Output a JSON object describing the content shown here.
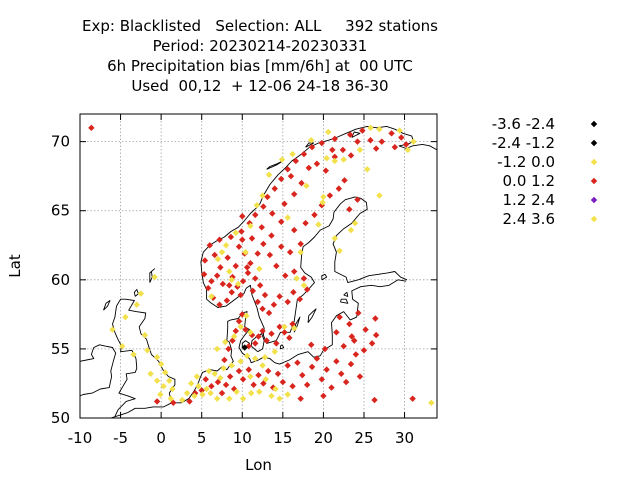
{
  "chart_data": {
    "type": "scatter",
    "title": [
      "Exp: Blacklisted   Selection: ALL     392 stations",
      "Period: 20230214-20230331",
      "6h Precipitation bias [mm/6h] at  00 UTC",
      "Used  00,12  + 12-06 24-18 36-30"
    ],
    "xlabel": "Lon",
    "ylabel": "Lat",
    "xlim": [
      -10,
      34
    ],
    "ylim": [
      50,
      72
    ],
    "xticks": [
      -10,
      -5,
      0,
      5,
      10,
      15,
      20,
      25,
      30
    ],
    "yticks": [
      50,
      55,
      60,
      65,
      70
    ],
    "grid": true,
    "legend_placement": "right",
    "classes": [
      {
        "label": "-3.6 -2.4",
        "color": "#000000"
      },
      {
        "label": "-2.4 -1.2",
        "color": "#000000"
      },
      {
        "label": "-1.2 0.0",
        "color": "#f2e14a"
      },
      {
        "label": "0.0 1.2",
        "color": "#d9251d"
      },
      {
        "label": "1.2 2.4",
        "color": "#7a1fc4"
      },
      {
        "label": "2.4 3.6",
        "color": "#f2e14a"
      }
    ],
    "series": [
      {
        "class": "0.0 1.2",
        "color": "#d9251d",
        "points": [
          [
            -8.6,
            71.0
          ],
          [
            -0.5,
            51.2
          ],
          [
            1.5,
            51.1
          ],
          [
            3.5,
            51.2
          ],
          [
            4.2,
            51.8
          ],
          [
            5.0,
            52.0
          ],
          [
            5.5,
            52.8
          ],
          [
            6.2,
            52.3
          ],
          [
            7.0,
            52.6
          ],
          [
            7.5,
            51.8
          ],
          [
            8.0,
            52.4
          ],
          [
            8.5,
            53.0
          ],
          [
            9.0,
            52.1
          ],
          [
            9.6,
            53.4
          ],
          [
            10.1,
            52.8
          ],
          [
            10.8,
            53.5
          ],
          [
            11.4,
            52.4
          ],
          [
            12.0,
            53.1
          ],
          [
            12.6,
            52.5
          ],
          [
            13.2,
            53.4
          ],
          [
            13.8,
            52.2
          ],
          [
            14.4,
            53.2
          ],
          [
            15.0,
            52.6
          ],
          [
            15.6,
            53.8
          ],
          [
            16.2,
            52.3
          ],
          [
            16.8,
            54.0
          ],
          [
            17.4,
            53.1
          ],
          [
            18.0,
            52.4
          ],
          [
            18.6,
            53.7
          ],
          [
            19.2,
            54.3
          ],
          [
            19.8,
            52.8
          ],
          [
            20.4,
            53.5
          ],
          [
            21.0,
            52.2
          ],
          [
            21.6,
            54.1
          ],
          [
            22.2,
            53.2
          ],
          [
            22.8,
            52.6
          ],
          [
            23.4,
            53.9
          ],
          [
            24.0,
            54.6
          ],
          [
            22.5,
            55.2
          ],
          [
            23.8,
            55.6
          ],
          [
            25.0,
            54.9
          ],
          [
            26.0,
            55.4
          ],
          [
            24.5,
            53.0
          ],
          [
            20.0,
            51.6
          ],
          [
            17.2,
            51.4
          ],
          [
            26.3,
            51.3
          ],
          [
            31.0,
            51.4
          ],
          [
            18.5,
            55.3
          ],
          [
            20.2,
            55.0
          ],
          [
            21.6,
            56.2
          ],
          [
            23.2,
            56.8
          ],
          [
            25.2,
            56.4
          ],
          [
            22.0,
            57.3
          ],
          [
            24.3,
            57.6
          ],
          [
            26.4,
            57.2
          ],
          [
            23.5,
            55.9
          ],
          [
            26.5,
            56.0
          ],
          [
            7.8,
            54.2
          ],
          [
            8.3,
            55.0
          ],
          [
            8.8,
            55.6
          ],
          [
            9.2,
            56.3
          ],
          [
            9.6,
            57.0
          ],
          [
            10.0,
            57.5
          ],
          [
            10.4,
            56.4
          ],
          [
            10.8,
            55.2
          ],
          [
            11.2,
            56.0
          ],
          [
            11.6,
            55.4
          ],
          [
            12.0,
            55.9
          ],
          [
            12.5,
            56.3
          ],
          [
            13.0,
            55.6
          ],
          [
            13.6,
            56.1
          ],
          [
            14.2,
            55.4
          ],
          [
            14.6,
            56.6
          ],
          [
            15.2,
            56.2
          ],
          [
            15.8,
            55.8
          ],
          [
            16.2,
            56.8
          ],
          [
            13.3,
            57.6
          ],
          [
            12.5,
            57.9
          ],
          [
            11.9,
            58.4
          ],
          [
            12.8,
            58.9
          ],
          [
            13.9,
            58.2
          ],
          [
            14.6,
            58.8
          ],
          [
            15.6,
            58.4
          ],
          [
            16.3,
            59.1
          ],
          [
            17.1,
            58.6
          ],
          [
            18.0,
            59.3
          ],
          [
            17.6,
            60.1
          ],
          [
            16.4,
            60.6
          ],
          [
            15.3,
            60.3
          ],
          [
            14.2,
            61.0
          ],
          [
            13.4,
            61.8
          ],
          [
            14.8,
            62.4
          ],
          [
            15.9,
            62.0
          ],
          [
            17.2,
            62.6
          ],
          [
            16.4,
            63.6
          ],
          [
            17.8,
            64.1
          ],
          [
            18.9,
            64.7
          ],
          [
            19.8,
            65.4
          ],
          [
            20.8,
            66.1
          ],
          [
            21.9,
            66.6
          ],
          [
            22.6,
            67.2
          ],
          [
            20.3,
            67.9
          ],
          [
            19.2,
            68.4
          ],
          [
            21.4,
            68.9
          ],
          [
            24.2,
            65.8
          ],
          [
            23.2,
            65.1
          ],
          [
            14.8,
            64.2
          ],
          [
            13.6,
            63.2
          ],
          [
            12.6,
            62.6
          ],
          [
            11.9,
            61.9
          ],
          [
            5.3,
            60.4
          ],
          [
            5.8,
            59.4
          ],
          [
            6.4,
            58.7
          ],
          [
            7.2,
            58.2
          ],
          [
            8.1,
            58.5
          ],
          [
            8.7,
            59.1
          ],
          [
            9.4,
            59.5
          ],
          [
            10.1,
            59.9
          ],
          [
            10.7,
            60.5
          ],
          [
            11.3,
            59.2
          ],
          [
            11.0,
            61.2
          ],
          [
            10.3,
            61.9
          ],
          [
            9.6,
            62.4
          ],
          [
            8.6,
            63.1
          ],
          [
            9.9,
            63.5
          ],
          [
            10.9,
            64.1
          ],
          [
            11.6,
            64.7
          ],
          [
            12.6,
            65.3
          ],
          [
            13.1,
            66.0
          ],
          [
            14.0,
            66.6
          ],
          [
            14.8,
            67.3
          ],
          [
            15.6,
            68.0
          ],
          [
            16.6,
            68.6
          ],
          [
            17.6,
            69.1
          ],
          [
            18.6,
            69.6
          ],
          [
            19.8,
            69.9
          ],
          [
            21.4,
            70.2
          ],
          [
            23.3,
            70.5
          ],
          [
            24.8,
            70.8
          ],
          [
            25.8,
            70.1
          ],
          [
            27.2,
            70.0
          ],
          [
            28.4,
            70.6
          ],
          [
            29.6,
            70.3
          ],
          [
            30.2,
            69.8
          ],
          [
            22.4,
            69.4
          ],
          [
            8.2,
            61.6
          ],
          [
            7.3,
            60.9
          ],
          [
            6.6,
            61.8
          ],
          [
            6.0,
            62.5
          ],
          [
            7.2,
            62.9
          ],
          [
            5.4,
            61.4
          ],
          [
            7.6,
            59.7
          ],
          [
            8.8,
            60.2
          ],
          [
            9.2,
            61.0
          ],
          [
            10.6,
            60.9
          ],
          [
            11.6,
            60.1
          ],
          [
            12.2,
            59.6
          ],
          [
            9.8,
            58.9
          ],
          [
            6.2,
            59.9
          ],
          [
            6.9,
            60.3
          ],
          [
            8.4,
            59.6
          ],
          [
            10.0,
            62.9
          ],
          [
            13.7,
            64.8
          ],
          [
            15.2,
            65.5
          ],
          [
            16.4,
            66.2
          ],
          [
            17.3,
            67.0
          ],
          [
            23.4,
            69.0
          ],
          [
            26.5,
            69.5
          ],
          [
            21.1,
            69.4
          ],
          [
            24.2,
            70.0
          ],
          [
            18.2,
            68.1
          ],
          [
            16.0,
            67.5
          ],
          [
            28.8,
            69.6
          ],
          [
            12.4,
            63.8
          ],
          [
            11.2,
            63.0
          ],
          [
            10.0,
            64.6
          ]
        ]
      },
      {
        "class": "-1.2 0.0",
        "color": "#f2e14a",
        "points": [
          [
            -2.5,
            59.0
          ],
          [
            -3.0,
            58.2
          ],
          [
            -4.4,
            57.3
          ],
          [
            -6.0,
            56.4
          ],
          [
            -0.8,
            60.2
          ],
          [
            -2.0,
            56.0
          ],
          [
            -0.5,
            54.4
          ],
          [
            0.0,
            53.9
          ],
          [
            0.5,
            53.3
          ],
          [
            1.0,
            52.7
          ],
          [
            1.4,
            52.1
          ],
          [
            0.3,
            52.3
          ],
          [
            -0.1,
            51.7
          ],
          [
            1.2,
            51.4
          ],
          [
            4.1,
            51.6
          ],
          [
            4.6,
            52.3
          ],
          [
            5.1,
            51.7
          ],
          [
            5.6,
            52.1
          ],
          [
            6.1,
            51.8
          ],
          [
            4.4,
            53.0
          ],
          [
            6.6,
            53.2
          ],
          [
            6.9,
            51.4
          ],
          [
            7.7,
            53.6
          ],
          [
            8.7,
            53.8
          ],
          [
            9.8,
            54.1
          ],
          [
            10.6,
            54.5
          ],
          [
            9.3,
            51.9
          ],
          [
            8.4,
            51.4
          ],
          [
            11.1,
            51.8
          ],
          [
            12.1,
            51.9
          ],
          [
            13.6,
            51.6
          ],
          [
            14.1,
            52.1
          ],
          [
            12.5,
            53.8
          ],
          [
            11.6,
            54.3
          ],
          [
            14.0,
            54.8
          ],
          [
            6.9,
            55.0
          ],
          [
            7.9,
            55.5
          ],
          [
            9.0,
            55.9
          ],
          [
            9.8,
            56.6
          ],
          [
            10.5,
            57.4
          ],
          [
            11.0,
            56.2
          ],
          [
            12.8,
            54.4
          ],
          [
            14.6,
            51.4
          ],
          [
            15.6,
            51.7
          ],
          [
            3.2,
            51.8
          ],
          [
            2.6,
            51.3
          ],
          [
            3.7,
            52.5
          ],
          [
            5.9,
            53.4
          ],
          [
            7.3,
            52.9
          ],
          [
            10.1,
            51.4
          ],
          [
            11.0,
            53.0
          ],
          [
            12.9,
            52.8
          ],
          [
            33.3,
            51.1
          ],
          [
            -1.7,
            54.9
          ],
          [
            -4.8,
            55.2
          ],
          [
            -3.4,
            54.6
          ],
          [
            -1.3,
            53.2
          ],
          [
            -0.5,
            52.7
          ],
          [
            6.2,
            58.8
          ],
          [
            7.0,
            61.5
          ],
          [
            7.5,
            62.0
          ],
          [
            8.0,
            62.5
          ],
          [
            9.2,
            63.4
          ],
          [
            10.4,
            62.0
          ],
          [
            11.0,
            63.9
          ],
          [
            11.8,
            65.4
          ],
          [
            12.5,
            66.1
          ],
          [
            13.3,
            67.6
          ],
          [
            14.9,
            68.7
          ],
          [
            16.2,
            69.1
          ],
          [
            18.5,
            70.1
          ],
          [
            20.6,
            70.7
          ],
          [
            21.4,
            68.6
          ],
          [
            22.5,
            68.7
          ],
          [
            24.5,
            69.4
          ],
          [
            25.8,
            71.0
          ],
          [
            26.9,
            70.9
          ],
          [
            29.4,
            70.8
          ],
          [
            30.4,
            69.4
          ],
          [
            31.1,
            70.0
          ],
          [
            26.9,
            66.1
          ],
          [
            25.4,
            68.0
          ],
          [
            20.4,
            68.8
          ],
          [
            20.0,
            66.0
          ],
          [
            19.4,
            64.0
          ],
          [
            17.2,
            62.0
          ],
          [
            16.7,
            60.1
          ],
          [
            17.6,
            59.6
          ],
          [
            12.1,
            60.8
          ],
          [
            15.2,
            56.6
          ],
          [
            19.9,
            65.6
          ],
          [
            23.4,
            63.6
          ],
          [
            21.4,
            63.0
          ],
          [
            22.0,
            62.1
          ],
          [
            23.9,
            64.1
          ],
          [
            15.6,
            64.5
          ],
          [
            17.9,
            66.8
          ],
          [
            8.4,
            60.6
          ],
          [
            9.5,
            59.7
          ],
          [
            16.4,
            56.5
          ],
          [
            8.7,
            60.0
          ]
        ]
      },
      {
        "class": "-2.4 -1.2",
        "color": "#000000",
        "points": [
          [
            10.3,
            55.1
          ]
        ]
      }
    ]
  }
}
